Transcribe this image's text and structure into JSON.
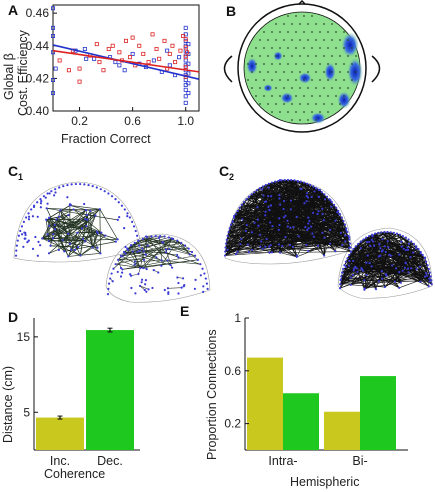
{
  "panel_labels": {
    "a": "A",
    "b": "B",
    "c1": "C",
    "c1_sub": "1",
    "c2": "C",
    "c2_sub": "2",
    "d": "D",
    "e": "E"
  },
  "colors": {
    "blue": "#2233cc",
    "red": "#dd2222",
    "yellow": "#c8c81e",
    "green": "#1ec81e",
    "head_fill": "#8ee08e",
    "dot": "#2b4d2b"
  },
  "chart_data": [
    {
      "id": "A",
      "type": "scatter",
      "xlabel": "Fraction Correct",
      "ylabel_lines": [
        "Global β",
        "Cost. Efficiency"
      ],
      "x_ticks": [
        0.2,
        0.6,
        1.0
      ],
      "x_tick_labels": [
        "0.2",
        "0.6",
        "1.0"
      ],
      "y_ticks": [
        0.4,
        0.42,
        0.44,
        0.46
      ],
      "y_tick_labels": [
        "0.40",
        "0.42",
        "0.44",
        "0.46"
      ],
      "xlim": [
        0.0,
        1.1
      ],
      "ylim": [
        0.4,
        0.465
      ],
      "series": [
        {
          "color": "#2233cc",
          "marker": "square-open",
          "fit": {
            "x": [
              0.0,
              1.1
            ],
            "y": [
              0.4405,
              0.4195
            ]
          },
          "points": [
            [
              0.0,
              0.463
            ],
            [
              0.0,
              0.451
            ],
            [
              0.0,
              0.446
            ],
            [
              0.0,
              0.436
            ],
            [
              0.0,
              0.419
            ],
            [
              0.0,
              0.411
            ],
            [
              0.02,
              0.426
            ],
            [
              0.17,
              0.437
            ],
            [
              0.24,
              0.438
            ],
            [
              0.25,
              0.432
            ],
            [
              0.31,
              0.432
            ],
            [
              0.43,
              0.433
            ],
            [
              0.47,
              0.43
            ],
            [
              0.5,
              0.428
            ],
            [
              0.54,
              0.425
            ],
            [
              0.6,
              0.435
            ],
            [
              0.65,
              0.429
            ],
            [
              0.7,
              0.427
            ],
            [
              0.76,
              0.431
            ],
            [
              0.82,
              0.424
            ],
            [
              0.86,
              0.437
            ],
            [
              0.88,
              0.428
            ],
            [
              0.92,
              0.422
            ],
            [
              0.95,
              0.433
            ],
            [
              1.0,
              0.451
            ],
            [
              1.0,
              0.447
            ],
            [
              1.0,
              0.443
            ],
            [
              1.0,
              0.44
            ],
            [
              1.0,
              0.437
            ],
            [
              1.0,
              0.434
            ],
            [
              1.0,
              0.431
            ],
            [
              1.0,
              0.428
            ],
            [
              1.0,
              0.425
            ],
            [
              1.0,
              0.422
            ],
            [
              1.0,
              0.419
            ],
            [
              1.0,
              0.416
            ],
            [
              1.0,
              0.413
            ],
            [
              1.0,
              0.409
            ],
            [
              1.0,
              0.405
            ],
            [
              1.02,
              0.441
            ],
            [
              1.02,
              0.435
            ],
            [
              1.02,
              0.429
            ],
            [
              1.02,
              0.423
            ],
            [
              1.02,
              0.417
            ],
            [
              1.02,
              0.411
            ]
          ]
        },
        {
          "color": "#dd2222",
          "marker": "square-open",
          "fit": {
            "x": [
              0.0,
              1.1
            ],
            "y": [
              0.437,
              0.424
            ]
          },
          "points": [
            [
              0.05,
              0.431
            ],
            [
              0.12,
              0.425
            ],
            [
              0.15,
              0.437
            ],
            [
              0.2,
              0.426
            ],
            [
              0.2,
              0.418
            ],
            [
              0.28,
              0.434
            ],
            [
              0.33,
              0.441
            ],
            [
              0.35,
              0.43
            ],
            [
              0.38,
              0.425
            ],
            [
              0.42,
              0.438
            ],
            [
              0.45,
              0.44
            ],
            [
              0.5,
              0.436
            ],
            [
              0.52,
              0.431
            ],
            [
              0.55,
              0.443
            ],
            [
              0.58,
              0.433
            ],
            [
              0.6,
              0.445
            ],
            [
              0.62,
              0.428
            ],
            [
              0.65,
              0.44
            ],
            [
              0.68,
              0.435
            ],
            [
              0.72,
              0.43
            ],
            [
              0.75,
              0.447
            ],
            [
              0.78,
              0.438
            ],
            [
              0.8,
              0.432
            ],
            [
              0.84,
              0.443
            ],
            [
              0.86,
              0.426
            ],
            [
              0.88,
              0.435
            ],
            [
              0.9,
              0.44
            ],
            [
              0.92,
              0.43
            ],
            [
              0.96,
              0.437
            ],
            [
              0.98,
              0.446
            ],
            [
              1.0,
              0.444
            ],
            [
              1.0,
              0.439
            ],
            [
              1.0,
              0.433
            ],
            [
              1.0,
              0.427
            ],
            [
              1.0,
              0.421
            ],
            [
              1.01,
              0.436
            ]
          ]
        }
      ]
    },
    {
      "id": "D",
      "type": "bar",
      "categories": [
        "Inc.",
        "Dec."
      ],
      "xlabel": "Coherence",
      "ylabel": "Distance (cm)",
      "values": [
        4.3,
        15.9
      ],
      "errors": [
        0.2,
        0.25
      ],
      "bar_colors": [
        "#c8c81e",
        "#1ec81e"
      ],
      "y_ticks": [
        5,
        15
      ],
      "y_tick_labels": [
        "5",
        "15"
      ],
      "ylim": [
        0,
        17.5
      ]
    },
    {
      "id": "E",
      "type": "bar",
      "categories": [
        "Intra-",
        "Bi-"
      ],
      "xlabel": "Hemispheric",
      "ylabel": "Proportion Connections",
      "series": [
        {
          "color": "#c8c81e",
          "values": [
            0.7,
            0.29
          ]
        },
        {
          "color": "#1ec81e",
          "values": [
            0.43,
            0.56
          ]
        }
      ],
      "y_ticks": [
        0.2,
        0.6,
        1
      ],
      "y_tick_labels": [
        "0.2",
        "0.6",
        "1"
      ],
      "ylim": [
        0,
        1
      ]
    }
  ]
}
